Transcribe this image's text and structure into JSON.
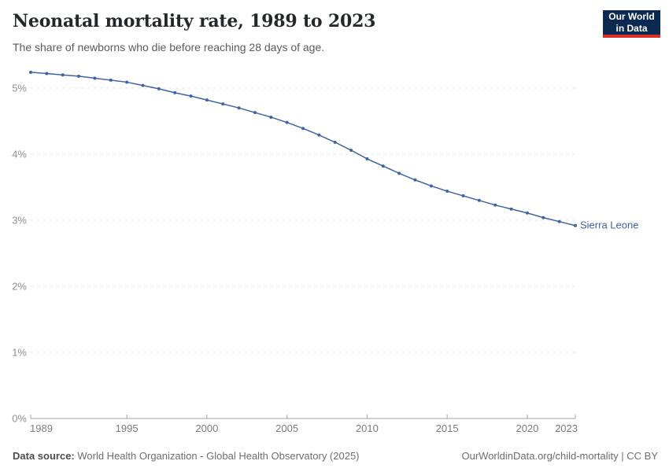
{
  "header": {
    "title": "Neonatal mortality rate, 1989 to 2023",
    "subtitle": "The share of newborns who die before reaching 28 days of age."
  },
  "logo": {
    "line1": "Our World",
    "line2": "in Data",
    "bg_color": "#0b2a52",
    "accent_color": "#dc2e27"
  },
  "chart_data": {
    "type": "line",
    "title": "Neonatal mortality rate, 1989 to 2023",
    "unit": "%",
    "x": [
      1989,
      1990,
      1991,
      1992,
      1993,
      1994,
      1995,
      1996,
      1997,
      1998,
      1999,
      2000,
      2001,
      2002,
      2003,
      2004,
      2005,
      2006,
      2007,
      2008,
      2009,
      2010,
      2011,
      2012,
      2013,
      2014,
      2015,
      2016,
      2017,
      2018,
      2019,
      2020,
      2021,
      2022,
      2023
    ],
    "series": [
      {
        "name": "Sierra Leone",
        "color": "#3d64a5",
        "values": [
          5.24,
          5.22,
          5.2,
          5.18,
          5.15,
          5.12,
          5.09,
          5.04,
          4.99,
          4.93,
          4.88,
          4.82,
          4.76,
          4.7,
          4.63,
          4.56,
          4.48,
          4.39,
          4.29,
          4.18,
          4.06,
          3.93,
          3.82,
          3.71,
          3.61,
          3.52,
          3.44,
          3.37,
          3.3,
          3.23,
          3.17,
          3.11,
          3.04,
          2.98,
          2.92
        ]
      }
    ],
    "x_ticks": [
      1989,
      1995,
      2000,
      2005,
      2010,
      2015,
      2020,
      2023
    ],
    "y_ticks": [
      0,
      1,
      2,
      3,
      4,
      5
    ],
    "y_tick_labels": [
      "0%",
      "1%",
      "2%",
      "3%",
      "4%",
      "5%"
    ],
    "ylim": [
      0,
      5.35
    ],
    "xlim": [
      1989,
      2023
    ],
    "grid": "horizontal-dashed",
    "legend_position": "end-of-line-label",
    "grid_color": "#e3e3e3",
    "axis_color": "#a3a3a3",
    "tick_label_color": "#7a7a7a"
  },
  "footer": {
    "source_label": "Data source:",
    "source_text": " World Health Organization - Global Health Observatory (2025)",
    "link_text": "OurWorldinData.org/child-mortality | CC BY"
  }
}
